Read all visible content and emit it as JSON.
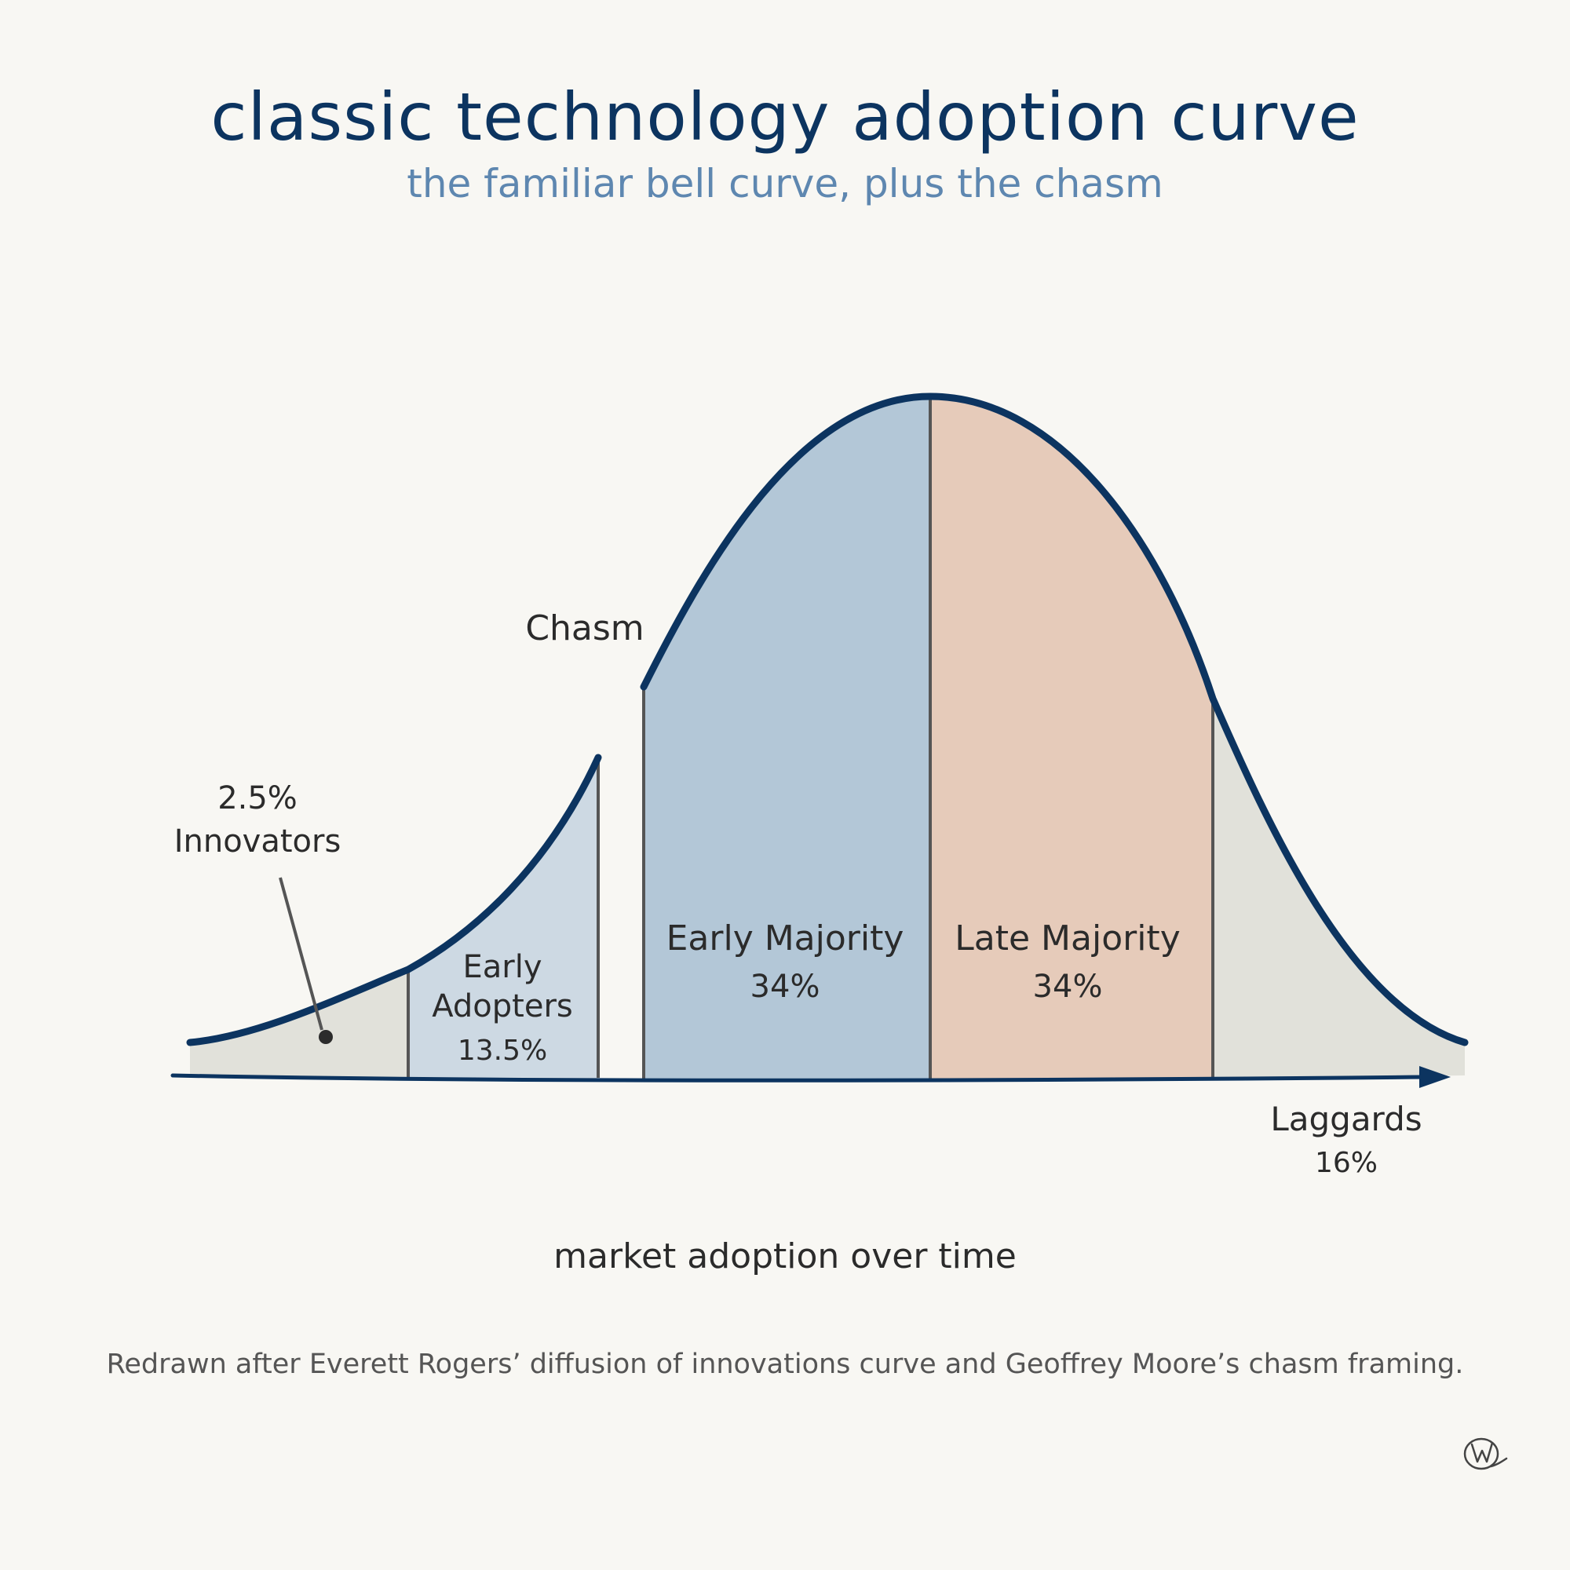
{
  "title": "classic technology adoption curve",
  "subtitle": "the familiar bell curve, plus the chasm",
  "x_axis_label": "market adoption over time",
  "footnote": "Redrawn after Everett Rogers’ diffusion of innovations curve and Geoffrey Moore’s chasm framing.",
  "chasm_label": "Chasm",
  "segments": {
    "innovators": {
      "name": "Innovators",
      "share": "2.5%"
    },
    "early_adopters": {
      "line1": "Early",
      "line2": "Adopters",
      "share": "13.5%"
    },
    "early_majority": {
      "name": "Early Majority",
      "share": "34%"
    },
    "late_majority": {
      "name": "Late Majority",
      "share": "34%"
    },
    "laggards": {
      "name": "Laggards",
      "share": "16%"
    }
  },
  "colors": {
    "curve": "#0c3460",
    "innovators_fill": "#e1e1da",
    "early_adopters_fill": "#cdd9e3",
    "early_majority_fill": "#b3c7d7",
    "late_majority_fill": "#e6cbba",
    "laggards_fill": "#e1e1da",
    "divider": "#555555"
  },
  "signature_icon": "signature-w-icon"
}
